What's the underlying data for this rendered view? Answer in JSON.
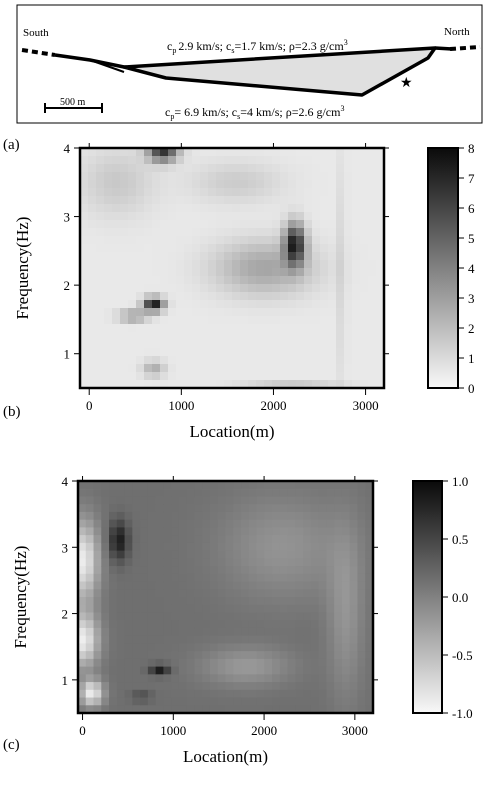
{
  "panel_a": {
    "label": "(a)",
    "south_label": "South",
    "north_label": "North",
    "scale_bar_label": "500 m",
    "upper_layer": {
      "cp": "2.9 km/s",
      "cs": "1.7 km/s",
      "rho": "2.3 g/cm",
      "rho_exp": "3"
    },
    "lower_layer": {
      "cp": "6.9 km/s",
      "cs": "4 km/s",
      "rho": "2.6 g/cm",
      "rho_exp": "3"
    },
    "star_symbol": "★"
  },
  "chart_data": [
    {
      "id": "b",
      "panel_label": "(b)",
      "type": "heatmap",
      "title": "",
      "xlabel": "Location(m)",
      "ylabel": "Frequency(Hz)",
      "xlim": [
        -100,
        3200
      ],
      "ylim": [
        0.5,
        4
      ],
      "x_ticks": [
        0,
        1000,
        2000,
        3000
      ],
      "y_ticks": [
        1,
        2,
        3,
        4
      ],
      "colorbar": {
        "range": [
          0,
          8
        ],
        "ticks": [
          "8",
          "7",
          "6",
          "5",
          "4",
          "3",
          "2",
          "1",
          "0"
        ],
        "colormap": "white-to-black"
      },
      "background_value": 0.5,
      "features": [
        {
          "x": 800,
          "y": 3.95,
          "value": 6.5,
          "sx": 160,
          "sy": 0.15
        },
        {
          "x": 700,
          "y": 1.72,
          "value": 7.5,
          "sx": 110,
          "sy": 0.1
        },
        {
          "x": 480,
          "y": 1.55,
          "value": 3.5,
          "sx": 160,
          "sy": 0.08
        },
        {
          "x": 2230,
          "y": 2.6,
          "value": 7.0,
          "sx": 110,
          "sy": 0.3
        },
        {
          "x": 1900,
          "y": 2.25,
          "value": 2.8,
          "sx": 550,
          "sy": 0.4
        },
        {
          "x": 700,
          "y": 0.78,
          "value": 2.5,
          "sx": 120,
          "sy": 0.12
        },
        {
          "x": 300,
          "y": 3.5,
          "value": 1.6,
          "sx": 400,
          "sy": 0.5
        },
        {
          "x": 1600,
          "y": 3.5,
          "value": 1.5,
          "sx": 500,
          "sy": 0.3
        },
        {
          "x": 2750,
          "y": 2.2,
          "value": 1.4,
          "sx": 40,
          "sy": 1.8
        },
        {
          "x": 2200,
          "y": 0.55,
          "value": 1.5,
          "sx": 500,
          "sy": 0.06
        }
      ]
    },
    {
      "id": "c",
      "panel_label": "(c)",
      "type": "heatmap",
      "title": "",
      "xlabel": "Location(m)",
      "ylabel": "Frequency(Hz)",
      "xlim": [
        -50,
        3200
      ],
      "ylim": [
        0.5,
        4
      ],
      "x_ticks": [
        0,
        1000,
        2000,
        3000
      ],
      "y_ticks": [
        1,
        2,
        3,
        4
      ],
      "colorbar": {
        "range": [
          -1.0,
          1.0
        ],
        "ticks": [
          "1.0",
          "0.5",
          "0.0",
          "-0.5",
          "-1.0"
        ],
        "colormap": "white-to-black"
      },
      "background_value": 0.15,
      "features": [
        {
          "x": 400,
          "y": 3.1,
          "value": 0.85,
          "sx": 110,
          "sy": 0.3
        },
        {
          "x": 850,
          "y": 1.15,
          "value": 0.85,
          "sx": 110,
          "sy": 0.08
        },
        {
          "x": 650,
          "y": 0.75,
          "value": 0.45,
          "sx": 120,
          "sy": 0.08
        },
        {
          "x": 0,
          "y": 2.8,
          "value": -0.9,
          "sx": 180,
          "sy": 0.6
        },
        {
          "x": 0,
          "y": 1.6,
          "value": -0.9,
          "sx": 180,
          "sy": 0.4
        },
        {
          "x": 100,
          "y": 0.8,
          "value": -0.9,
          "sx": 130,
          "sy": 0.2
        },
        {
          "x": 2200,
          "y": 3.0,
          "value": -0.15,
          "sx": 700,
          "sy": 0.8
        },
        {
          "x": 1800,
          "y": 1.2,
          "value": -0.2,
          "sx": 500,
          "sy": 0.3
        },
        {
          "x": 2900,
          "y": 2.0,
          "value": -0.15,
          "sx": 200,
          "sy": 1.3
        }
      ]
    }
  ]
}
